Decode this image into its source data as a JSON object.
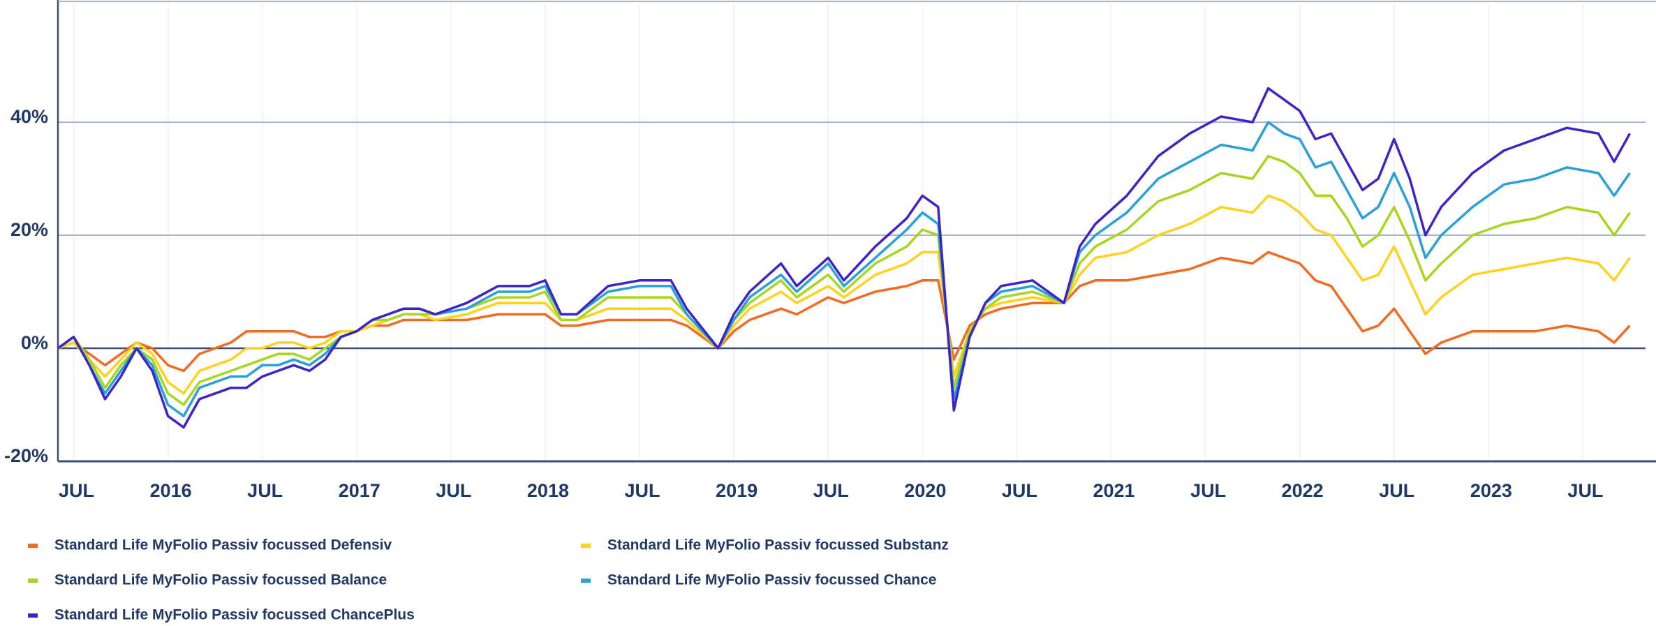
{
  "chart_data": {
    "type": "line",
    "x": [
      "2015-06",
      "2015-07",
      "2015-08",
      "2015-09",
      "2015-10",
      "2015-11",
      "2015-12",
      "2016-01",
      "2016-02",
      "2016-03",
      "2016-04",
      "2016-05",
      "2016-06",
      "2016-07",
      "2016-08",
      "2016-09",
      "2016-10",
      "2016-11",
      "2016-12",
      "2017-01",
      "2017-02",
      "2017-03",
      "2017-04",
      "2017-05",
      "2017-06",
      "2017-08",
      "2017-10",
      "2017-12",
      "2018-01",
      "2018-02",
      "2018-03",
      "2018-05",
      "2018-07",
      "2018-09",
      "2018-10",
      "2018-12",
      "2019-01",
      "2019-02",
      "2019-04",
      "2019-05",
      "2019-07",
      "2019-08",
      "2019-10",
      "2019-12",
      "2020-01",
      "2020-02",
      "2020-03",
      "2020-04",
      "2020-05",
      "2020-06",
      "2020-08",
      "2020-10",
      "2020-11",
      "2020-12",
      "2021-02",
      "2021-04",
      "2021-06",
      "2021-08",
      "2021-10",
      "2021-11",
      "2021-12",
      "2022-01",
      "2022-02",
      "2022-03",
      "2022-04",
      "2022-05",
      "2022-06",
      "2022-07",
      "2022-08",
      "2022-09",
      "2022-10",
      "2022-12",
      "2023-02",
      "2023-04",
      "2023-06",
      "2023-08",
      "2023-09",
      "2023-10"
    ],
    "series": [
      {
        "name": "Standard Life MyFolio Passiv focussed Defensiv",
        "color": "#f26b21",
        "values": [
          0,
          1,
          -1,
          -3,
          -1,
          1,
          0,
          -3,
          -4,
          -1,
          0,
          1,
          3,
          3,
          3,
          3,
          2,
          2,
          3,
          3,
          4,
          4,
          5,
          5,
          5,
          5,
          6,
          6,
          6,
          4,
          4,
          5,
          5,
          5,
          4,
          0,
          3,
          5,
          7,
          6,
          9,
          8,
          10,
          11,
          12,
          12,
          -2,
          4,
          6,
          7,
          8,
          8,
          11,
          12,
          12,
          13,
          14,
          16,
          15,
          17,
          16,
          15,
          12,
          11,
          7,
          3,
          4,
          7,
          3,
          -1,
          1,
          3,
          3,
          3,
          4,
          3,
          1,
          4
        ]
      },
      {
        "name": "Standard Life MyFolio Passiv focussed Substanz",
        "color": "#ffd21f",
        "values": [
          0,
          1,
          -2,
          -5,
          -2,
          1,
          -1,
          -6,
          -8,
          -4,
          -3,
          -2,
          0,
          0,
          1,
          1,
          0,
          1,
          3,
          3,
          4,
          5,
          6,
          6,
          5,
          6,
          8,
          8,
          8,
          5,
          5,
          7,
          7,
          7,
          5,
          0,
          4,
          7,
          10,
          8,
          11,
          9,
          13,
          15,
          17,
          17,
          -5,
          3,
          7,
          8,
          9,
          8,
          13,
          16,
          17,
          20,
          22,
          25,
          24,
          27,
          26,
          24,
          21,
          20,
          16,
          12,
          13,
          18,
          12,
          6,
          9,
          13,
          14,
          15,
          16,
          15,
          12,
          16
        ]
      },
      {
        "name": "Standard Life MyFolio Passiv focussed Balance",
        "color": "#a6d61e",
        "values": [
          0,
          2,
          -2,
          -7,
          -3,
          0,
          -2,
          -8,
          -10,
          -6,
          -5,
          -4,
          -3,
          -2,
          -1,
          -1,
          -2,
          0,
          2,
          3,
          5,
          5,
          6,
          6,
          6,
          7,
          9,
          9,
          10,
          5,
          5,
          9,
          9,
          9,
          6,
          0,
          5,
          8,
          12,
          9,
          13,
          10,
          15,
          18,
          21,
          20,
          -7,
          3,
          7,
          9,
          10,
          8,
          15,
          18,
          21,
          26,
          28,
          31,
          30,
          34,
          33,
          31,
          27,
          27,
          23,
          18,
          20,
          25,
          19,
          12,
          15,
          20,
          22,
          23,
          25,
          24,
          20,
          24
        ]
      },
      {
        "name": "Standard Life MyFolio Passiv focussed Chance",
        "color": "#2aa0d8",
        "values": [
          0,
          2,
          -3,
          -8,
          -4,
          0,
          -3,
          -10,
          -12,
          -7,
          -6,
          -5,
          -5,
          -3,
          -3,
          -2,
          -3,
          -1,
          2,
          3,
          5,
          6,
          7,
          7,
          6,
          7,
          10,
          10,
          11,
          6,
          6,
          10,
          11,
          11,
          6,
          0,
          5,
          9,
          13,
          10,
          15,
          11,
          16,
          21,
          24,
          22,
          -9,
          2,
          8,
          10,
          11,
          8,
          17,
          20,
          24,
          30,
          33,
          36,
          35,
          40,
          38,
          37,
          32,
          33,
          28,
          23,
          25,
          31,
          25,
          16,
          20,
          25,
          29,
          30,
          32,
          31,
          27,
          31
        ]
      },
      {
        "name": "Standard Life MyFolio Passiv focussed ChancePlus",
        "color": "#3d24c8",
        "values": [
          0,
          2,
          -3,
          -9,
          -5,
          0,
          -4,
          -12,
          -14,
          -9,
          -8,
          -7,
          -7,
          -5,
          -4,
          -3,
          -4,
          -2,
          2,
          3,
          5,
          6,
          7,
          7,
          6,
          8,
          11,
          11,
          12,
          6,
          6,
          11,
          12,
          12,
          7,
          0,
          6,
          10,
          15,
          11,
          16,
          12,
          18,
          23,
          27,
          25,
          -11,
          2,
          8,
          11,
          12,
          8,
          18,
          22,
          27,
          34,
          38,
          41,
          40,
          46,
          44,
          42,
          37,
          38,
          33,
          28,
          30,
          37,
          30,
          20,
          25,
          31,
          35,
          37,
          39,
          38,
          33,
          38
        ]
      }
    ],
    "xlim": [
      "2015-06",
      "2023-11"
    ],
    "xticks": [
      {
        "value": "2015-07",
        "label": "JUL"
      },
      {
        "value": "2016-01",
        "label": "2016"
      },
      {
        "value": "2016-07",
        "label": "JUL"
      },
      {
        "value": "2017-01",
        "label": "2017"
      },
      {
        "value": "2017-07",
        "label": "JUL"
      },
      {
        "value": "2018-01",
        "label": "2018"
      },
      {
        "value": "2018-07",
        "label": "JUL"
      },
      {
        "value": "2019-01",
        "label": "2019"
      },
      {
        "value": "2019-07",
        "label": "JUL"
      },
      {
        "value": "2020-01",
        "label": "2020"
      },
      {
        "value": "2020-07",
        "label": "JUL"
      },
      {
        "value": "2021-01",
        "label": "2021"
      },
      {
        "value": "2021-07",
        "label": "JUL"
      },
      {
        "value": "2022-01",
        "label": "2022"
      },
      {
        "value": "2022-07",
        "label": "JUL"
      },
      {
        "value": "2023-01",
        "label": "2023"
      },
      {
        "value": "2023-07",
        "label": "JUL"
      }
    ],
    "ylim": [
      -20,
      61
    ],
    "yticks": [
      {
        "value": -20,
        "label": "-20%"
      },
      {
        "value": 0,
        "label": "0%"
      },
      {
        "value": 20,
        "label": "20%"
      },
      {
        "value": 40,
        "label": "40%"
      }
    ],
    "grid": true,
    "legend": "bottom"
  }
}
